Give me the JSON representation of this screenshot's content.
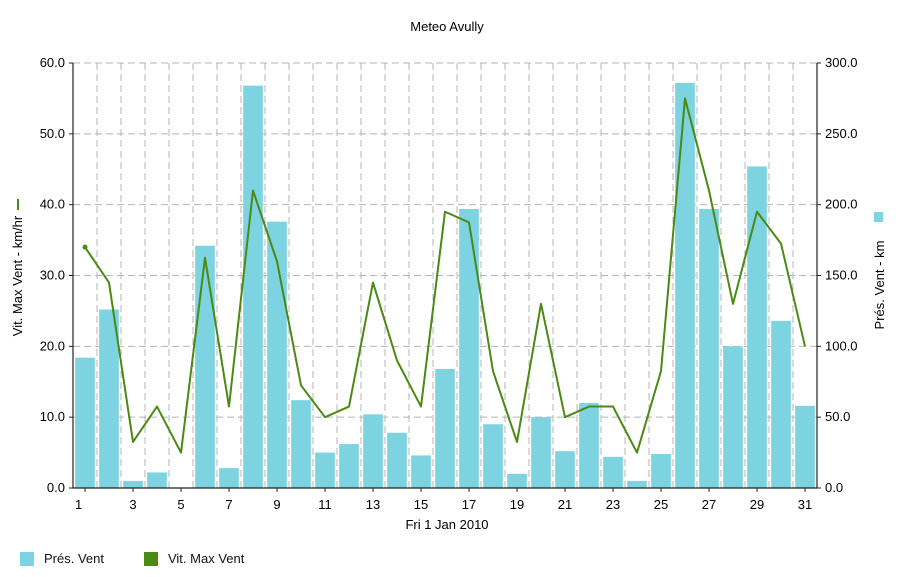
{
  "chart_data": {
    "type": "bar",
    "title": "Meteo  Avully",
    "xlabel": "Fri 1 Jan 2010",
    "x": [
      1,
      2,
      3,
      4,
      5,
      6,
      7,
      8,
      9,
      10,
      11,
      12,
      13,
      14,
      15,
      16,
      17,
      18,
      19,
      20,
      21,
      22,
      23,
      24,
      25,
      26,
      27,
      28,
      29,
      30,
      31
    ],
    "x_tick_labels": [
      "1",
      "3",
      "5",
      "7",
      "9",
      "11",
      "13",
      "15",
      "17",
      "19",
      "21",
      "23",
      "25",
      "27",
      "29",
      "31"
    ],
    "x_tick_values": [
      1,
      3,
      5,
      7,
      9,
      11,
      13,
      15,
      17,
      19,
      21,
      23,
      25,
      27,
      29,
      31
    ],
    "y_left": {
      "label": "Vit. Max Vent - km/hr",
      "lim": [
        0,
        60
      ],
      "ticks": [
        "0.0",
        "10.0",
        "20.0",
        "30.0",
        "40.0",
        "50.0",
        "60.0"
      ]
    },
    "y_right": {
      "label": "Prés. Vent - km",
      "lim": [
        0,
        300
      ],
      "ticks": [
        "0.0",
        "50.0",
        "100.0",
        "150.0",
        "200.0",
        "250.0",
        "300.0"
      ]
    },
    "series": [
      {
        "name": "Prés. Vent",
        "kind": "bar",
        "axis": "right",
        "color": "#7dd3e0",
        "values": [
          92,
          126,
          5,
          11,
          0,
          171,
          14,
          284,
          188,
          62,
          25,
          31,
          52,
          39,
          23,
          84,
          197,
          45,
          10,
          50,
          26,
          60,
          22,
          5,
          24,
          286,
          197,
          100,
          227,
          118,
          58
        ]
      },
      {
        "name": "Vit. Max Vent",
        "kind": "line",
        "axis": "left",
        "color": "#4a8a12",
        "values": [
          34,
          29,
          6.5,
          11.5,
          5,
          32.5,
          11.5,
          42,
          32,
          14.5,
          10,
          11.5,
          29,
          18,
          11.5,
          39,
          37.5,
          16.5,
          6.5,
          26,
          10,
          11.5,
          11.5,
          5,
          16.5,
          55,
          42,
          26,
          39,
          34.5,
          20
        ]
      }
    ],
    "grid": true,
    "legend_position": "bottom-left"
  },
  "colors": {
    "bar": "#7dd3e0",
    "line": "#4a8a12",
    "grid": "#b5b5b5"
  }
}
